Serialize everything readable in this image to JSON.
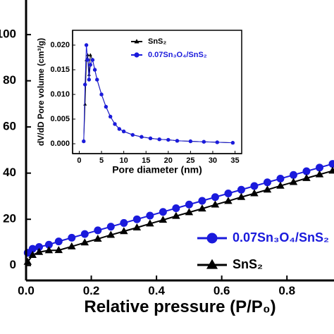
{
  "chart_data": [
    {
      "type": "line",
      "xlabel": "Relative pressure (P/P₀)",
      "x": [
        0.005,
        0.02,
        0.04,
        0.07,
        0.1,
        0.14,
        0.18,
        0.22,
        0.26,
        0.3,
        0.34,
        0.38,
        0.42,
        0.46,
        0.5,
        0.54,
        0.58,
        0.62,
        0.66,
        0.7,
        0.74,
        0.78,
        0.82,
        0.86,
        0.9,
        0.94
      ],
      "series": [
        {
          "name": "0.07Sn₃O₄/SnS₂",
          "color": "#1a1adc",
          "marker": "circle",
          "values": [
            5.5,
            7.2,
            8.0,
            9.0,
            10.4,
            12.0,
            13.6,
            15.2,
            16.8,
            18.4,
            20.0,
            21.6,
            23.2,
            24.8,
            26.4,
            28.0,
            29.6,
            31.2,
            32.8,
            34.4,
            36.0,
            37.6,
            39.2,
            40.8,
            42.4,
            44.0
          ]
        },
        {
          "name": "SnS₂",
          "color": "#000000",
          "marker": "triangle",
          "values": [
            1.5,
            4.5,
            5.8,
            6.5,
            6.6,
            8.2,
            9.9,
            11.5,
            13.2,
            14.8,
            16.4,
            18.1,
            19.7,
            21.4,
            23.0,
            24.6,
            26.3,
            27.9,
            29.6,
            31.2,
            32.8,
            34.5,
            36.1,
            37.8,
            39.4,
            41.0
          ]
        }
      ],
      "xlim": [
        0,
        0.94
      ],
      "ylim": [
        -6.5,
        115
      ],
      "xticks": [
        {
          "value": 0,
          "label": "0.0"
        },
        0.2,
        0.4,
        0.6,
        0.8
      ],
      "yticks": [
        0,
        20,
        40,
        60,
        80,
        100
      ],
      "legend": "lower right"
    },
    {
      "type": "line",
      "xlabel": "Pore diameter (nm)",
      "ylabel": "dV/dD Pore volume (cm³/g)",
      "x": [
        1,
        1.3,
        1.6,
        1.9,
        2.2,
        2.5,
        3,
        3.5,
        4,
        5,
        6,
        7,
        8,
        9,
        10,
        12,
        14,
        16,
        18,
        20,
        22,
        25,
        28,
        31,
        34.5
      ],
      "series": [
        {
          "name": "SnS₂",
          "color": "#000000",
          "marker": "triangle",
          "values": [
            0.0005,
            0.008,
            0.017,
            0.018,
            0.014,
            0.018,
            0.017,
            0.015,
            0.013,
            0.01,
            0.0075,
            0.0055,
            0.004,
            0.003,
            0.0025,
            0.0018,
            0.0014,
            0.0011,
            0.0009,
            0.0008,
            0.0006,
            0.0005,
            0.0004,
            0.0003,
            0.0002
          ]
        },
        {
          "name": "0.07Sn₃O₄/SnS₂",
          "color": "#1a1adc",
          "marker": "circle",
          "values": [
            0.0005,
            0.012,
            0.02,
            0.017,
            0.013,
            0.016,
            0.017,
            0.015,
            0.013,
            0.01,
            0.0075,
            0.0055,
            0.004,
            0.003,
            0.0025,
            0.0018,
            0.0014,
            0.0011,
            0.0009,
            0.0008,
            0.0006,
            0.0005,
            0.0004,
            0.0003,
            0.0002
          ]
        }
      ],
      "xlim": [
        -1.5,
        36.5
      ],
      "ylim": [
        -0.002,
        0.023
      ],
      "xticks": [
        0,
        5,
        10,
        15,
        20,
        25,
        30,
        35
      ],
      "yticks": [
        {
          "value": 0,
          "label": "0.000"
        },
        {
          "value": 0.005,
          "label": "0.005"
        },
        {
          "value": 0.01,
          "label": "0.010"
        },
        {
          "value": 0.015,
          "label": "0.015"
        },
        {
          "value": 0.02,
          "label": "0.020"
        }
      ],
      "legend": "upper right"
    }
  ]
}
